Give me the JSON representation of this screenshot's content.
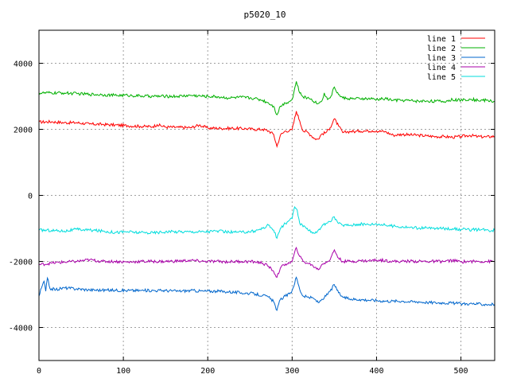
{
  "chart_data": {
    "type": "line",
    "title": "p5020_10",
    "xlabel": "",
    "ylabel": "",
    "xlim": [
      0,
      540
    ],
    "ylim": [
      -5000,
      5000
    ],
    "x_ticks": [
      0,
      100,
      200,
      300,
      400,
      500
    ],
    "y_ticks": [
      -4000,
      -2000,
      0,
      2000,
      4000
    ],
    "grid": true,
    "legend_position": "top-right",
    "series": [
      {
        "name": "line 1",
        "color": "#ff0000",
        "points": [
          [
            0,
            2220
          ],
          [
            15,
            2230
          ],
          [
            30,
            2200
          ],
          [
            45,
            2200
          ],
          [
            60,
            2160
          ],
          [
            75,
            2150
          ],
          [
            90,
            2130
          ],
          [
            105,
            2110
          ],
          [
            120,
            2090
          ],
          [
            135,
            2080
          ],
          [
            140,
            2140
          ],
          [
            150,
            2070
          ],
          [
            165,
            2060
          ],
          [
            180,
            2050
          ],
          [
            190,
            2130
          ],
          [
            200,
            2040
          ],
          [
            215,
            2030
          ],
          [
            230,
            2030
          ],
          [
            245,
            2020
          ],
          [
            255,
            2000
          ],
          [
            265,
            2000
          ],
          [
            272,
            1950
          ],
          [
            278,
            1850
          ],
          [
            282,
            1480
          ],
          [
            286,
            1820
          ],
          [
            292,
            1950
          ],
          [
            297,
            1960
          ],
          [
            300,
            1990
          ],
          [
            305,
            2550
          ],
          [
            309,
            2250
          ],
          [
            313,
            1950
          ],
          [
            318,
            1920
          ],
          [
            323,
            1800
          ],
          [
            327,
            1720
          ],
          [
            331,
            1700
          ],
          [
            335,
            1860
          ],
          [
            340,
            1900
          ],
          [
            345,
            2050
          ],
          [
            350,
            2320
          ],
          [
            355,
            2100
          ],
          [
            360,
            1900
          ],
          [
            365,
            1920
          ],
          [
            370,
            1940
          ],
          [
            375,
            1930
          ],
          [
            380,
            1950
          ],
          [
            385,
            1950
          ],
          [
            390,
            1950
          ],
          [
            395,
            1960
          ],
          [
            400,
            1950
          ],
          [
            410,
            1930
          ],
          [
            420,
            1820
          ],
          [
            430,
            1850
          ],
          [
            440,
            1830
          ],
          [
            450,
            1820
          ],
          [
            460,
            1800
          ],
          [
            470,
            1780
          ],
          [
            480,
            1780
          ],
          [
            490,
            1760
          ],
          [
            500,
            1780
          ],
          [
            510,
            1820
          ],
          [
            520,
            1780
          ],
          [
            530,
            1770
          ],
          [
            540,
            1790
          ]
        ]
      },
      {
        "name": "line 2",
        "color": "#00b000",
        "points": [
          [
            0,
            3100
          ],
          [
            15,
            3100
          ],
          [
            30,
            3100
          ],
          [
            45,
            3080
          ],
          [
            60,
            3060
          ],
          [
            75,
            3050
          ],
          [
            90,
            3030
          ],
          [
            105,
            3030
          ],
          [
            120,
            3010
          ],
          [
            135,
            3000
          ],
          [
            150,
            3000
          ],
          [
            165,
            3000
          ],
          [
            180,
            3030
          ],
          [
            195,
            3000
          ],
          [
            210,
            2990
          ],
          [
            225,
            2950
          ],
          [
            240,
            2970
          ],
          [
            255,
            2940
          ],
          [
            265,
            2880
          ],
          [
            272,
            2800
          ],
          [
            278,
            2700
          ],
          [
            282,
            2440
          ],
          [
            286,
            2700
          ],
          [
            292,
            2800
          ],
          [
            297,
            2850
          ],
          [
            300,
            2900
          ],
          [
            305,
            3450
          ],
          [
            309,
            3100
          ],
          [
            313,
            2980
          ],
          [
            318,
            2950
          ],
          [
            323,
            2920
          ],
          [
            327,
            2820
          ],
          [
            331,
            2780
          ],
          [
            335,
            2850
          ],
          [
            338,
            3100
          ],
          [
            342,
            2900
          ],
          [
            346,
            3000
          ],
          [
            350,
            3280
          ],
          [
            355,
            3050
          ],
          [
            360,
            2950
          ],
          [
            365,
            2940
          ],
          [
            370,
            2930
          ],
          [
            375,
            2920
          ],
          [
            380,
            2930
          ],
          [
            385,
            2930
          ],
          [
            390,
            2920
          ],
          [
            395,
            2920
          ],
          [
            400,
            2900
          ],
          [
            410,
            2930
          ],
          [
            420,
            2880
          ],
          [
            430,
            2880
          ],
          [
            440,
            2870
          ],
          [
            450,
            2850
          ],
          [
            460,
            2860
          ],
          [
            470,
            2850
          ],
          [
            480,
            2840
          ],
          [
            490,
            2900
          ],
          [
            500,
            2880
          ],
          [
            510,
            2920
          ],
          [
            520,
            2880
          ],
          [
            530,
            2880
          ],
          [
            540,
            2840
          ]
        ]
      },
      {
        "name": "line 3",
        "color": "#0066cc",
        "points": [
          [
            0,
            -3050
          ],
          [
            3,
            -2800
          ],
          [
            6,
            -2600
          ],
          [
            8,
            -2900
          ],
          [
            10,
            -2500
          ],
          [
            13,
            -2820
          ],
          [
            20,
            -2850
          ],
          [
            30,
            -2800
          ],
          [
            45,
            -2830
          ],
          [
            60,
            -2860
          ],
          [
            75,
            -2870
          ],
          [
            90,
            -2870
          ],
          [
            105,
            -2880
          ],
          [
            120,
            -2880
          ],
          [
            135,
            -2880
          ],
          [
            150,
            -2880
          ],
          [
            165,
            -2900
          ],
          [
            180,
            -2880
          ],
          [
            195,
            -2900
          ],
          [
            210,
            -2900
          ],
          [
            225,
            -2920
          ],
          [
            240,
            -2950
          ],
          [
            255,
            -2980
          ],
          [
            265,
            -3030
          ],
          [
            272,
            -3080
          ],
          [
            278,
            -3220
          ],
          [
            282,
            -3480
          ],
          [
            286,
            -3150
          ],
          [
            292,
            -3050
          ],
          [
            297,
            -2980
          ],
          [
            300,
            -2880
          ],
          [
            305,
            -2480
          ],
          [
            309,
            -2850
          ],
          [
            313,
            -3050
          ],
          [
            318,
            -3080
          ],
          [
            323,
            -3100
          ],
          [
            327,
            -3150
          ],
          [
            331,
            -3250
          ],
          [
            335,
            -3150
          ],
          [
            340,
            -3050
          ],
          [
            345,
            -2900
          ],
          [
            350,
            -2700
          ],
          [
            355,
            -2950
          ],
          [
            360,
            -3080
          ],
          [
            365,
            -3120
          ],
          [
            370,
            -3140
          ],
          [
            380,
            -3150
          ],
          [
            390,
            -3170
          ],
          [
            400,
            -3180
          ],
          [
            410,
            -3200
          ],
          [
            420,
            -3200
          ],
          [
            430,
            -3200
          ],
          [
            440,
            -3220
          ],
          [
            450,
            -3220
          ],
          [
            460,
            -3240
          ],
          [
            470,
            -3250
          ],
          [
            480,
            -3250
          ],
          [
            490,
            -3260
          ],
          [
            500,
            -3280
          ],
          [
            510,
            -3280
          ],
          [
            520,
            -3290
          ],
          [
            530,
            -3300
          ],
          [
            540,
            -3300
          ]
        ]
      },
      {
        "name": "line 4",
        "color": "#aa00aa",
        "points": [
          [
            0,
            -2100
          ],
          [
            15,
            -2050
          ],
          [
            30,
            -2020
          ],
          [
            45,
            -2000
          ],
          [
            60,
            -1950
          ],
          [
            75,
            -2000
          ],
          [
            90,
            -2000
          ],
          [
            105,
            -2020
          ],
          [
            120,
            -2000
          ],
          [
            135,
            -2000
          ],
          [
            150,
            -2000
          ],
          [
            165,
            -1990
          ],
          [
            180,
            -1970
          ],
          [
            195,
            -2000
          ],
          [
            210,
            -2000
          ],
          [
            225,
            -2010
          ],
          [
            240,
            -2000
          ],
          [
            255,
            -2010
          ],
          [
            265,
            -2050
          ],
          [
            272,
            -2150
          ],
          [
            278,
            -2300
          ],
          [
            282,
            -2480
          ],
          [
            286,
            -2200
          ],
          [
            292,
            -2080
          ],
          [
            297,
            -2050
          ],
          [
            300,
            -2000
          ],
          [
            305,
            -1580
          ],
          [
            309,
            -1850
          ],
          [
            313,
            -2000
          ],
          [
            318,
            -2050
          ],
          [
            323,
            -2100
          ],
          [
            327,
            -2180
          ],
          [
            331,
            -2250
          ],
          [
            335,
            -2100
          ],
          [
            340,
            -2020
          ],
          [
            345,
            -1950
          ],
          [
            350,
            -1650
          ],
          [
            355,
            -1900
          ],
          [
            360,
            -2000
          ],
          [
            365,
            -2000
          ],
          [
            370,
            -2000
          ],
          [
            380,
            -1980
          ],
          [
            390,
            -1980
          ],
          [
            400,
            -1960
          ],
          [
            410,
            -1970
          ],
          [
            420,
            -2000
          ],
          [
            430,
            -2000
          ],
          [
            440,
            -1990
          ],
          [
            450,
            -2000
          ],
          [
            460,
            -2000
          ],
          [
            470,
            -2000
          ],
          [
            480,
            -2000
          ],
          [
            490,
            -1970
          ],
          [
            500,
            -2010
          ],
          [
            510,
            -2000
          ],
          [
            520,
            -2000
          ],
          [
            530,
            -2000
          ],
          [
            540,
            -2000
          ]
        ]
      },
      {
        "name": "line 5",
        "color": "#00dddd",
        "points": [
          [
            0,
            -1050
          ],
          [
            15,
            -1060
          ],
          [
            30,
            -1080
          ],
          [
            45,
            -1030
          ],
          [
            60,
            -1050
          ],
          [
            75,
            -1080
          ],
          [
            90,
            -1120
          ],
          [
            105,
            -1100
          ],
          [
            120,
            -1130
          ],
          [
            135,
            -1130
          ],
          [
            150,
            -1100
          ],
          [
            165,
            -1100
          ],
          [
            180,
            -1100
          ],
          [
            195,
            -1100
          ],
          [
            210,
            -1080
          ],
          [
            225,
            -1110
          ],
          [
            240,
            -1120
          ],
          [
            255,
            -1080
          ],
          [
            265,
            -1000
          ],
          [
            272,
            -900
          ],
          [
            278,
            -1050
          ],
          [
            282,
            -1300
          ],
          [
            286,
            -1000
          ],
          [
            292,
            -850
          ],
          [
            297,
            -750
          ],
          [
            300,
            -700
          ],
          [
            303,
            -350
          ],
          [
            306,
            -450
          ],
          [
            309,
            -850
          ],
          [
            313,
            -950
          ],
          [
            318,
            -1000
          ],
          [
            323,
            -1100
          ],
          [
            327,
            -1150
          ],
          [
            331,
            -1050
          ],
          [
            335,
            -950
          ],
          [
            340,
            -850
          ],
          [
            345,
            -800
          ],
          [
            350,
            -650
          ],
          [
            355,
            -850
          ],
          [
            360,
            -900
          ],
          [
            370,
            -900
          ],
          [
            380,
            -870
          ],
          [
            390,
            -880
          ],
          [
            400,
            -860
          ],
          [
            410,
            -900
          ],
          [
            420,
            -930
          ],
          [
            430,
            -950
          ],
          [
            440,
            -970
          ],
          [
            450,
            -990
          ],
          [
            460,
            -990
          ],
          [
            470,
            -1000
          ],
          [
            480,
            -1000
          ],
          [
            490,
            -1010
          ],
          [
            500,
            -1030
          ],
          [
            510,
            -1040
          ],
          [
            520,
            -1040
          ],
          [
            530,
            -1050
          ],
          [
            540,
            -1060
          ]
        ]
      }
    ]
  }
}
